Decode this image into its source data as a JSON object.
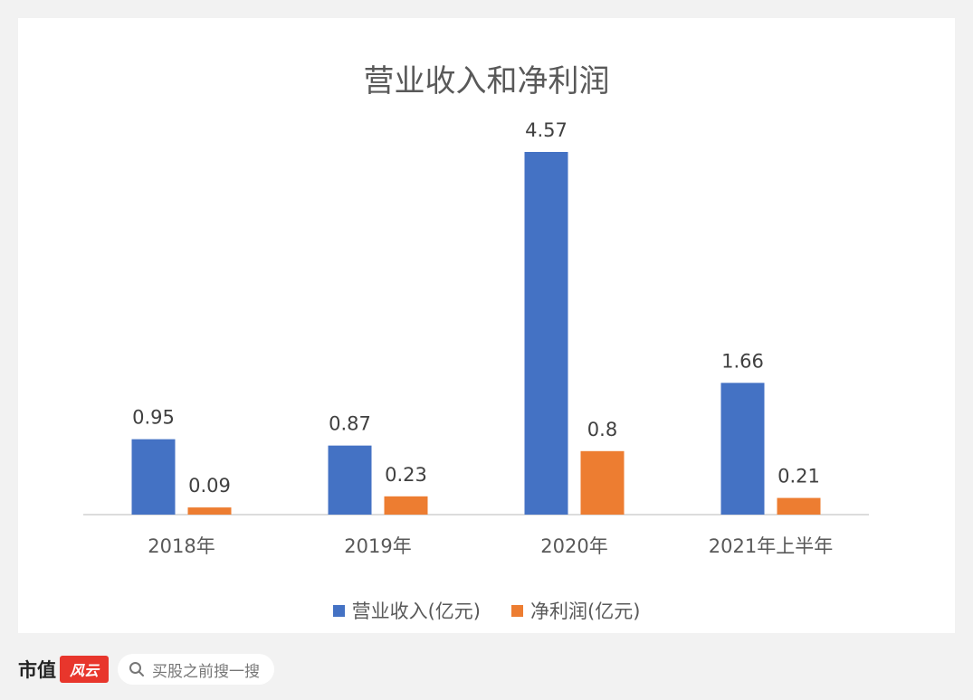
{
  "brand": {
    "name": "市值",
    "mark": "风云"
  },
  "search": {
    "placeholder": "买股之前搜一搜"
  },
  "colors": {
    "revenue": "#4472c4",
    "profit": "#ed7d31"
  },
  "chart_data": {
    "type": "bar",
    "title": "营业收入和净利润",
    "categories": [
      "2018年",
      "2019年",
      "2020年",
      "2021年上半年"
    ],
    "series": [
      {
        "name": "营业收入(亿元)",
        "values": [
          0.95,
          0.87,
          4.57,
          1.66
        ],
        "labels": [
          "0.95",
          "0.87",
          "4.57",
          "1.66"
        ]
      },
      {
        "name": "净利润(亿元)",
        "values": [
          0.09,
          0.23,
          0.8,
          0.21
        ],
        "labels": [
          "0.09",
          "0.23",
          "0.8",
          "0.21"
        ]
      }
    ],
    "ylim": [
      0,
      4.57
    ],
    "legend": "bottom",
    "grid": false
  }
}
